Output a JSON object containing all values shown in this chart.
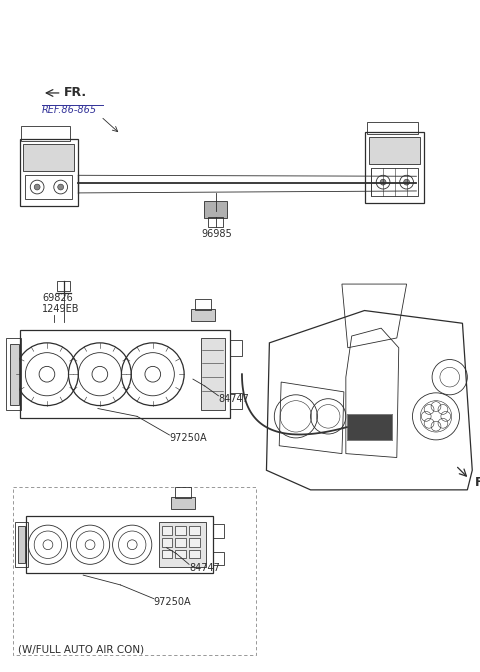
{
  "bg_color": "#ffffff",
  "line_color": "#2d2d2d",
  "annotations": {
    "w_full_auto": "(W/FULL AUTO AIR CON)",
    "97250A_top": "97250A",
    "84747_top": "84747",
    "97250A_mid": "97250A",
    "84747_mid": "84747",
    "1249EB": "1249EB",
    "69826": "69826",
    "96985": "96985",
    "ref_86_865": "REF.86-865",
    "FR_top": "FR.",
    "FR_bot": "FR."
  },
  "fig_width": 4.8,
  "fig_height": 6.72,
  "dpi": 100
}
